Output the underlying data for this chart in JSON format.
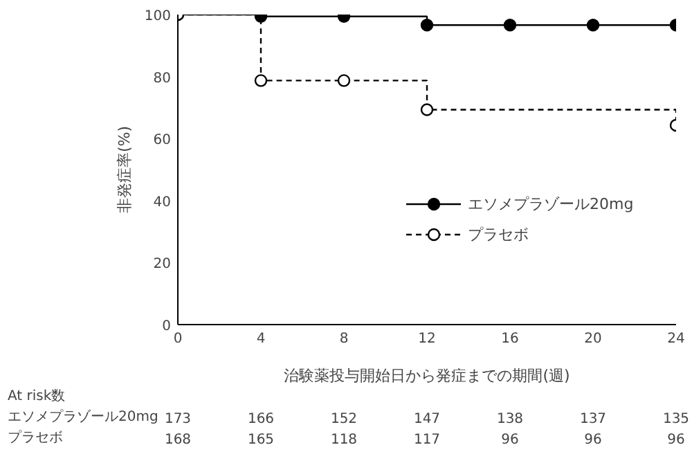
{
  "chart_data": {
    "type": "step",
    "xlabel": "治験薬投与開始日から発症までの期間(週)",
    "ylabel": "非発症率(%)",
    "xlim": [
      0,
      24
    ],
    "xticks": [
      0,
      4,
      8,
      12,
      16,
      20,
      24
    ],
    "ylim": [
      0,
      100
    ],
    "yticks": [
      0,
      20,
      40,
      60,
      80,
      100
    ],
    "grid": false,
    "legend": "right",
    "marker": "circle",
    "series": [
      {
        "name": "エソメプラゾール20mg",
        "color": "#000000",
        "line_style": "solid",
        "x": [
          0,
          4,
          8,
          12,
          16,
          20,
          24
        ],
        "values": [
          100,
          99.4,
          99.4,
          96.6,
          96.6,
          96.6,
          96.6
        ]
      },
      {
        "name": "プラセボ",
        "color": "#000000",
        "line_style": "dashed",
        "x": [
          0,
          4,
          8,
          12,
          24
        ],
        "values": [
          100,
          78.7,
          78.7,
          69.3,
          64.3
        ]
      }
    ],
    "annotations": [
      "At risk数",
      "エソメプラゾール20mg",
      "173",
      "166",
      "152",
      "147",
      "138",
      "137",
      "135",
      "プラセボ",
      "168",
      "165",
      "118",
      "117",
      "96",
      "96",
      "96"
    ]
  }
}
